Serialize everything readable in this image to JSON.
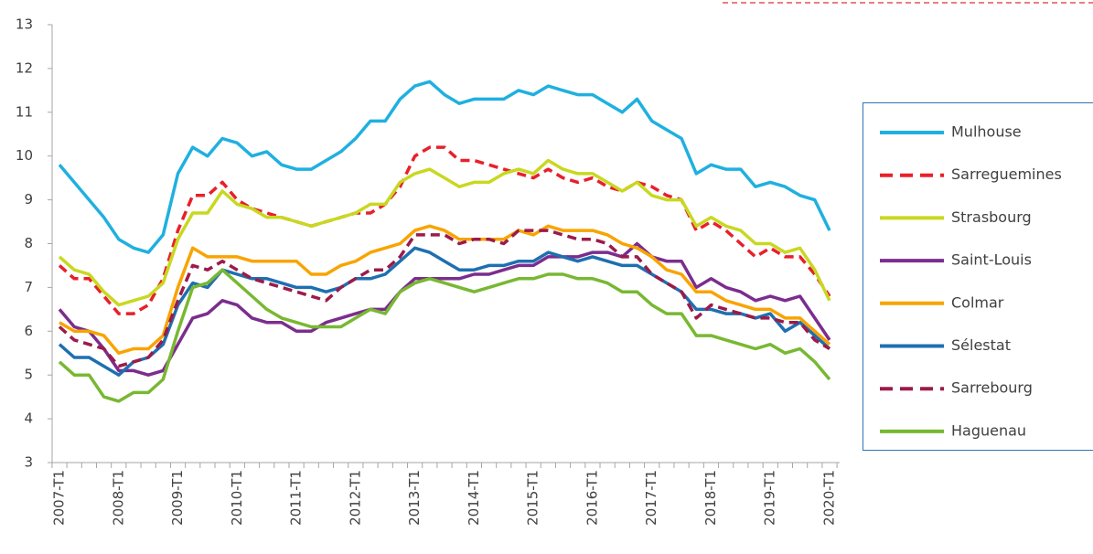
{
  "chart_data": {
    "type": "line",
    "categories": [
      "2007-T1",
      null,
      null,
      null,
      "2008-T1",
      null,
      null,
      null,
      "2009-T1",
      null,
      null,
      null,
      "2010-T1",
      null,
      null,
      null,
      "2011-T1",
      null,
      null,
      null,
      "2012-T1",
      null,
      null,
      null,
      "2013-T1",
      null,
      null,
      null,
      "2014-T1",
      null,
      null,
      null,
      "2015-T1",
      null,
      null,
      null,
      "2016-T1",
      null,
      null,
      null,
      "2017-T1",
      null,
      null,
      null,
      "2018-T1",
      null,
      null,
      null,
      "2019-T1",
      null,
      null,
      null,
      "2020-T1"
    ],
    "ylim": [
      3,
      13
    ],
    "yticks": [
      3,
      4,
      5,
      6,
      7,
      8,
      9,
      10,
      11,
      12,
      13
    ],
    "legend": "right",
    "series": [
      {
        "name": "Mulhouse",
        "color": "#1fb0e0",
        "dashed": false,
        "values": [
          9.8,
          9.4,
          9.0,
          8.6,
          8.1,
          7.9,
          7.8,
          8.2,
          9.6,
          10.2,
          10.0,
          10.4,
          10.3,
          10.0,
          10.1,
          9.8,
          9.7,
          9.7,
          9.9,
          10.1,
          10.4,
          10.8,
          10.8,
          11.3,
          11.6,
          11.7,
          11.4,
          11.2,
          11.3,
          11.3,
          11.3,
          11.5,
          11.4,
          11.6,
          11.5,
          11.4,
          11.4,
          11.2,
          11.0,
          11.3,
          10.8,
          10.6,
          10.4,
          9.6,
          9.8,
          9.7,
          9.7,
          9.3,
          9.4,
          9.3,
          9.1,
          9.0,
          8.3
        ]
      },
      {
        "name": "Sarreguemines",
        "color": "#e8202a",
        "dashed": true,
        "values": [
          7.5,
          7.2,
          7.2,
          6.8,
          6.4,
          6.4,
          6.6,
          7.2,
          8.3,
          9.1,
          9.1,
          9.4,
          9.0,
          8.8,
          8.7,
          8.6,
          8.5,
          8.4,
          8.5,
          8.6,
          8.7,
          8.7,
          8.9,
          9.3,
          10.0,
          10.2,
          10.2,
          9.9,
          9.9,
          9.8,
          9.7,
          9.6,
          9.5,
          9.7,
          9.5,
          9.4,
          9.5,
          9.3,
          9.2,
          9.4,
          9.3,
          9.1,
          9.0,
          8.3,
          8.5,
          8.3,
          8.0,
          7.7,
          7.9,
          7.7,
          7.7,
          7.3,
          6.8
        ]
      },
      {
        "name": "Strasbourg",
        "color": "#c8d820",
        "dashed": false,
        "values": [
          7.7,
          7.4,
          7.3,
          6.9,
          6.6,
          6.7,
          6.8,
          7.1,
          8.1,
          8.7,
          8.7,
          9.2,
          8.9,
          8.8,
          8.6,
          8.6,
          8.5,
          8.4,
          8.5,
          8.6,
          8.7,
          8.9,
          8.9,
          9.4,
          9.6,
          9.7,
          9.5,
          9.3,
          9.4,
          9.4,
          9.6,
          9.7,
          9.6,
          9.9,
          9.7,
          9.6,
          9.6,
          9.4,
          9.2,
          9.4,
          9.1,
          9.0,
          9.0,
          8.4,
          8.6,
          8.4,
          8.3,
          8.0,
          8.0,
          7.8,
          7.9,
          7.4,
          6.7
        ]
      },
      {
        "name": "Saint-Louis",
        "color": "#7b2d8e",
        "dashed": false,
        "values": [
          6.5,
          6.1,
          6.0,
          5.6,
          5.1,
          5.1,
          5.0,
          5.1,
          5.7,
          6.3,
          6.4,
          6.7,
          6.6,
          6.3,
          6.2,
          6.2,
          6.0,
          6.0,
          6.2,
          6.3,
          6.4,
          6.5,
          6.5,
          6.9,
          7.2,
          7.2,
          7.2,
          7.2,
          7.3,
          7.3,
          7.4,
          7.5,
          7.5,
          7.7,
          7.7,
          7.7,
          7.8,
          7.8,
          7.7,
          8.0,
          7.7,
          7.6,
          7.6,
          7.0,
          7.2,
          7.0,
          6.9,
          6.7,
          6.8,
          6.7,
          6.8,
          6.3,
          5.8
        ]
      },
      {
        "name": "Colmar",
        "color": "#f8a400",
        "dashed": false,
        "values": [
          6.2,
          6.0,
          6.0,
          5.9,
          5.5,
          5.6,
          5.6,
          5.9,
          7.0,
          7.9,
          7.7,
          7.7,
          7.7,
          7.6,
          7.6,
          7.6,
          7.6,
          7.3,
          7.3,
          7.5,
          7.6,
          7.8,
          7.9,
          8.0,
          8.3,
          8.4,
          8.3,
          8.1,
          8.1,
          8.1,
          8.1,
          8.3,
          8.2,
          8.4,
          8.3,
          8.3,
          8.3,
          8.2,
          8.0,
          7.9,
          7.7,
          7.4,
          7.3,
          6.9,
          6.9,
          6.7,
          6.6,
          6.5,
          6.5,
          6.3,
          6.3,
          6.0,
          5.7
        ]
      },
      {
        "name": "Sélestat",
        "color": "#1f6fb0",
        "dashed": false,
        "values": [
          5.7,
          5.4,
          5.4,
          5.2,
          5.0,
          5.3,
          5.4,
          5.7,
          6.6,
          7.1,
          7.0,
          7.4,
          7.3,
          7.2,
          7.2,
          7.1,
          7.0,
          7.0,
          6.9,
          7.0,
          7.2,
          7.2,
          7.3,
          7.6,
          7.9,
          7.8,
          7.6,
          7.4,
          7.4,
          7.5,
          7.5,
          7.6,
          7.6,
          7.8,
          7.7,
          7.6,
          7.7,
          7.6,
          7.5,
          7.5,
          7.3,
          7.1,
          6.9,
          6.5,
          6.5,
          6.4,
          6.4,
          6.3,
          6.4,
          6.0,
          6.2,
          5.9,
          5.6
        ]
      },
      {
        "name": "Sarrebourg",
        "color": "#9b1b4a",
        "dashed": true,
        "values": [
          6.1,
          5.8,
          5.7,
          5.6,
          5.2,
          5.3,
          5.4,
          5.8,
          6.7,
          7.5,
          7.4,
          7.6,
          7.4,
          7.2,
          7.1,
          7.0,
          6.9,
          6.8,
          6.7,
          7.0,
          7.2,
          7.4,
          7.4,
          7.7,
          8.2,
          8.2,
          8.2,
          8.0,
          8.1,
          8.1,
          8.0,
          8.3,
          8.3,
          8.3,
          8.2,
          8.1,
          8.1,
          8.0,
          7.7,
          7.7,
          7.3,
          7.1,
          6.9,
          6.3,
          6.6,
          6.5,
          6.4,
          6.3,
          6.3,
          6.2,
          6.2,
          5.8,
          5.6
        ]
      },
      {
        "name": "Haguenau",
        "color": "#78b832",
        "dashed": false,
        "values": [
          5.3,
          5.0,
          5.0,
          4.5,
          4.4,
          4.6,
          4.6,
          4.9,
          6.0,
          7.0,
          7.1,
          7.4,
          7.1,
          6.8,
          6.5,
          6.3,
          6.2,
          6.1,
          6.1,
          6.1,
          6.3,
          6.5,
          6.4,
          6.9,
          7.1,
          7.2,
          7.1,
          7.0,
          6.9,
          7.0,
          7.1,
          7.2,
          7.2,
          7.3,
          7.3,
          7.2,
          7.2,
          7.1,
          6.9,
          6.9,
          6.6,
          6.4,
          6.4,
          5.9,
          5.9,
          5.8,
          5.7,
          5.6,
          5.7,
          5.5,
          5.6,
          5.3,
          4.9
        ]
      }
    ]
  }
}
